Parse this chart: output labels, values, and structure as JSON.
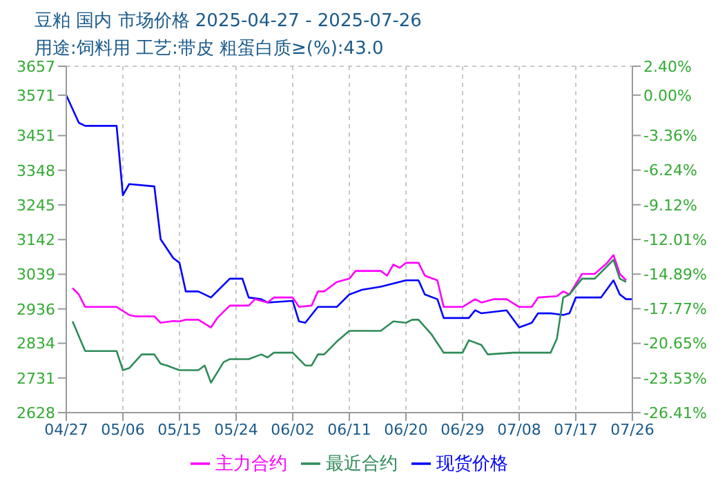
{
  "chart_data": {
    "type": "line",
    "title": "豆粕 国内 市场价格 2025-04-27 - 2025-07-26",
    "subtitle": "用途:饲料用 工艺:带皮 粗蛋白质≥(%):43.0",
    "xlim": [
      "2025-04-27",
      "2025-07-26"
    ],
    "xticks": [
      {
        "value": "2025-04-27",
        "label": "04/27"
      },
      {
        "value": "2025-05-06",
        "label": "05/06"
      },
      {
        "value": "2025-05-15",
        "label": "05/15"
      },
      {
        "value": "2025-05-24",
        "label": "05/24"
      },
      {
        "value": "2025-06-02",
        "label": "06/02"
      },
      {
        "value": "2025-06-11",
        "label": "06/11"
      },
      {
        "value": "2025-06-20",
        "label": "06/20"
      },
      {
        "value": "2025-06-29",
        "label": "06/29"
      },
      {
        "value": "2025-07-08",
        "label": "07/08"
      },
      {
        "value": "2025-07-17",
        "label": "07/17"
      },
      {
        "value": "2025-07-26",
        "label": "07/26"
      }
    ],
    "ylim": [
      2628,
      3657
    ],
    "yticks": [
      2628,
      2731,
      2834,
      2936,
      3039,
      3142,
      3245,
      3348,
      3451,
      3571,
      3657
    ],
    "y2lim": [
      -26.41,
      2.4
    ],
    "y2ticks": [
      {
        "value": -26.41,
        "label": "-26.41%"
      },
      {
        "value": -23.53,
        "label": "-23.53%"
      },
      {
        "value": -20.65,
        "label": "-20.65%"
      },
      {
        "value": -17.77,
        "label": "-17.77%"
      },
      {
        "value": -14.89,
        "label": "-14.89%"
      },
      {
        "value": -12.01,
        "label": "-12.01%"
      },
      {
        "value": -9.12,
        "label": "-9.12%"
      },
      {
        "value": -6.24,
        "label": "-6.24%"
      },
      {
        "value": -3.36,
        "label": "-3.36%"
      },
      {
        "value": 0.0,
        "label": "0.00%"
      },
      {
        "value": 2.4,
        "label": "2.40%"
      }
    ],
    "grid": true,
    "legend": "bottom",
    "marker": "none",
    "line_style": "solid",
    "series": [
      {
        "name": "现货价格",
        "color": "#0000ff",
        "x": [
          "2025-04-27",
          "2025-04-29",
          "2025-04-30",
          "2025-05-05",
          "2025-05-06",
          "2025-05-07",
          "2025-05-11",
          "2025-05-12",
          "2025-05-14",
          "2025-05-15",
          "2025-05-16",
          "2025-05-18",
          "2025-05-20",
          "2025-05-23",
          "2025-05-25",
          "2025-05-26",
          "2025-05-28",
          "2025-05-29",
          "2025-06-02",
          "2025-06-03",
          "2025-06-04",
          "2025-06-06",
          "2025-06-09",
          "2025-06-11",
          "2025-06-13",
          "2025-06-16",
          "2025-06-20",
          "2025-06-22",
          "2025-06-23",
          "2025-06-25",
          "2025-06-26",
          "2025-06-30",
          "2025-07-01",
          "2025-07-02",
          "2025-07-06",
          "2025-07-08",
          "2025-07-10",
          "2025-07-11",
          "2025-07-13",
          "2025-07-15",
          "2025-07-16",
          "2025-07-17",
          "2025-07-21",
          "2025-07-23",
          "2025-07-24",
          "2025-07-25",
          "2025-07-26"
        ],
        "values": [
          3571,
          3489,
          3480,
          3480,
          3274,
          3307,
          3300,
          3143,
          3087,
          3073,
          2988,
          2988,
          2970,
          3026,
          3026,
          2970,
          2965,
          2955,
          2960,
          2899,
          2895,
          2942,
          2942,
          2979,
          2993,
          3002,
          3021,
          3021,
          2979,
          2965,
          2909,
          2909,
          2932,
          2923,
          2932,
          2881,
          2895,
          2923,
          2923,
          2918,
          2923,
          2970,
          2970,
          3021,
          2979,
          2965,
          2965
        ]
      },
      {
        "name": "主力合约",
        "color": "#ff00ff",
        "x": [
          "2025-04-28",
          "2025-04-29",
          "2025-04-30",
          "2025-05-05",
          "2025-05-07",
          "2025-05-08",
          "2025-05-11",
          "2025-05-12",
          "2025-05-14",
          "2025-05-15",
          "2025-05-16",
          "2025-05-18",
          "2025-05-20",
          "2025-05-21",
          "2025-05-23",
          "2025-05-26",
          "2025-05-27",
          "2025-05-29",
          "2025-05-30",
          "2025-06-02",
          "2025-06-03",
          "2025-06-05",
          "2025-06-06",
          "2025-06-07",
          "2025-06-09",
          "2025-06-11",
          "2025-06-12",
          "2025-06-16",
          "2025-06-17",
          "2025-06-18",
          "2025-06-19",
          "2025-06-20",
          "2025-06-22",
          "2025-06-23",
          "2025-06-25",
          "2025-06-26",
          "2025-06-29",
          "2025-07-01",
          "2025-07-02",
          "2025-07-04",
          "2025-07-06",
          "2025-07-08",
          "2025-07-10",
          "2025-07-11",
          "2025-07-14",
          "2025-07-15",
          "2025-07-16",
          "2025-07-18",
          "2025-07-20",
          "2025-07-22",
          "2025-07-23",
          "2025-07-24",
          "2025-07-25"
        ],
        "values": [
          2998,
          2979,
          2942,
          2942,
          2918,
          2914,
          2914,
          2895,
          2900,
          2899,
          2904,
          2904,
          2881,
          2909,
          2946,
          2946,
          2965,
          2955,
          2970,
          2970,
          2942,
          2946,
          2988,
          2988,
          3016,
          3026,
          3049,
          3049,
          3035,
          3068,
          3058,
          3073,
          3073,
          3035,
          3021,
          2942,
          2942,
          2965,
          2955,
          2965,
          2965,
          2942,
          2942,
          2970,
          2974,
          2988,
          2979,
          3040,
          3040,
          3073,
          3096,
          3040,
          3021
        ]
      },
      {
        "name": "最近合约",
        "color": "#2e8b57",
        "x": [
          "2025-04-28",
          "2025-04-30",
          "2025-05-05",
          "2025-05-06",
          "2025-05-07",
          "2025-05-09",
          "2025-05-11",
          "2025-05-12",
          "2025-05-13",
          "2025-05-15",
          "2025-05-18",
          "2025-05-19",
          "2025-05-20",
          "2025-05-22",
          "2025-05-23",
          "2025-05-26",
          "2025-05-28",
          "2025-05-29",
          "2025-05-30",
          "2025-06-02",
          "2025-06-04",
          "2025-06-05",
          "2025-06-06",
          "2025-06-07",
          "2025-06-09",
          "2025-06-11",
          "2025-06-16",
          "2025-06-18",
          "2025-06-20",
          "2025-06-21",
          "2025-06-22",
          "2025-06-24",
          "2025-06-26",
          "2025-06-29",
          "2025-06-30",
          "2025-07-02",
          "2025-07-03",
          "2025-07-07",
          "2025-07-13",
          "2025-07-14",
          "2025-07-15",
          "2025-07-16",
          "2025-07-18",
          "2025-07-20",
          "2025-07-23",
          "2025-07-24",
          "2025-07-25"
        ],
        "values": [
          2899,
          2811,
          2811,
          2754,
          2760,
          2801,
          2801,
          2773,
          2768,
          2754,
          2754,
          2768,
          2717,
          2778,
          2787,
          2787,
          2801,
          2792,
          2806,
          2806,
          2768,
          2768,
          2801,
          2801,
          2839,
          2871,
          2871,
          2899,
          2895,
          2904,
          2904,
          2862,
          2806,
          2806,
          2843,
          2829,
          2801,
          2806,
          2806,
          2848,
          2970,
          2979,
          3026,
          3026,
          3082,
          3026,
          3016
        ]
      }
    ]
  }
}
